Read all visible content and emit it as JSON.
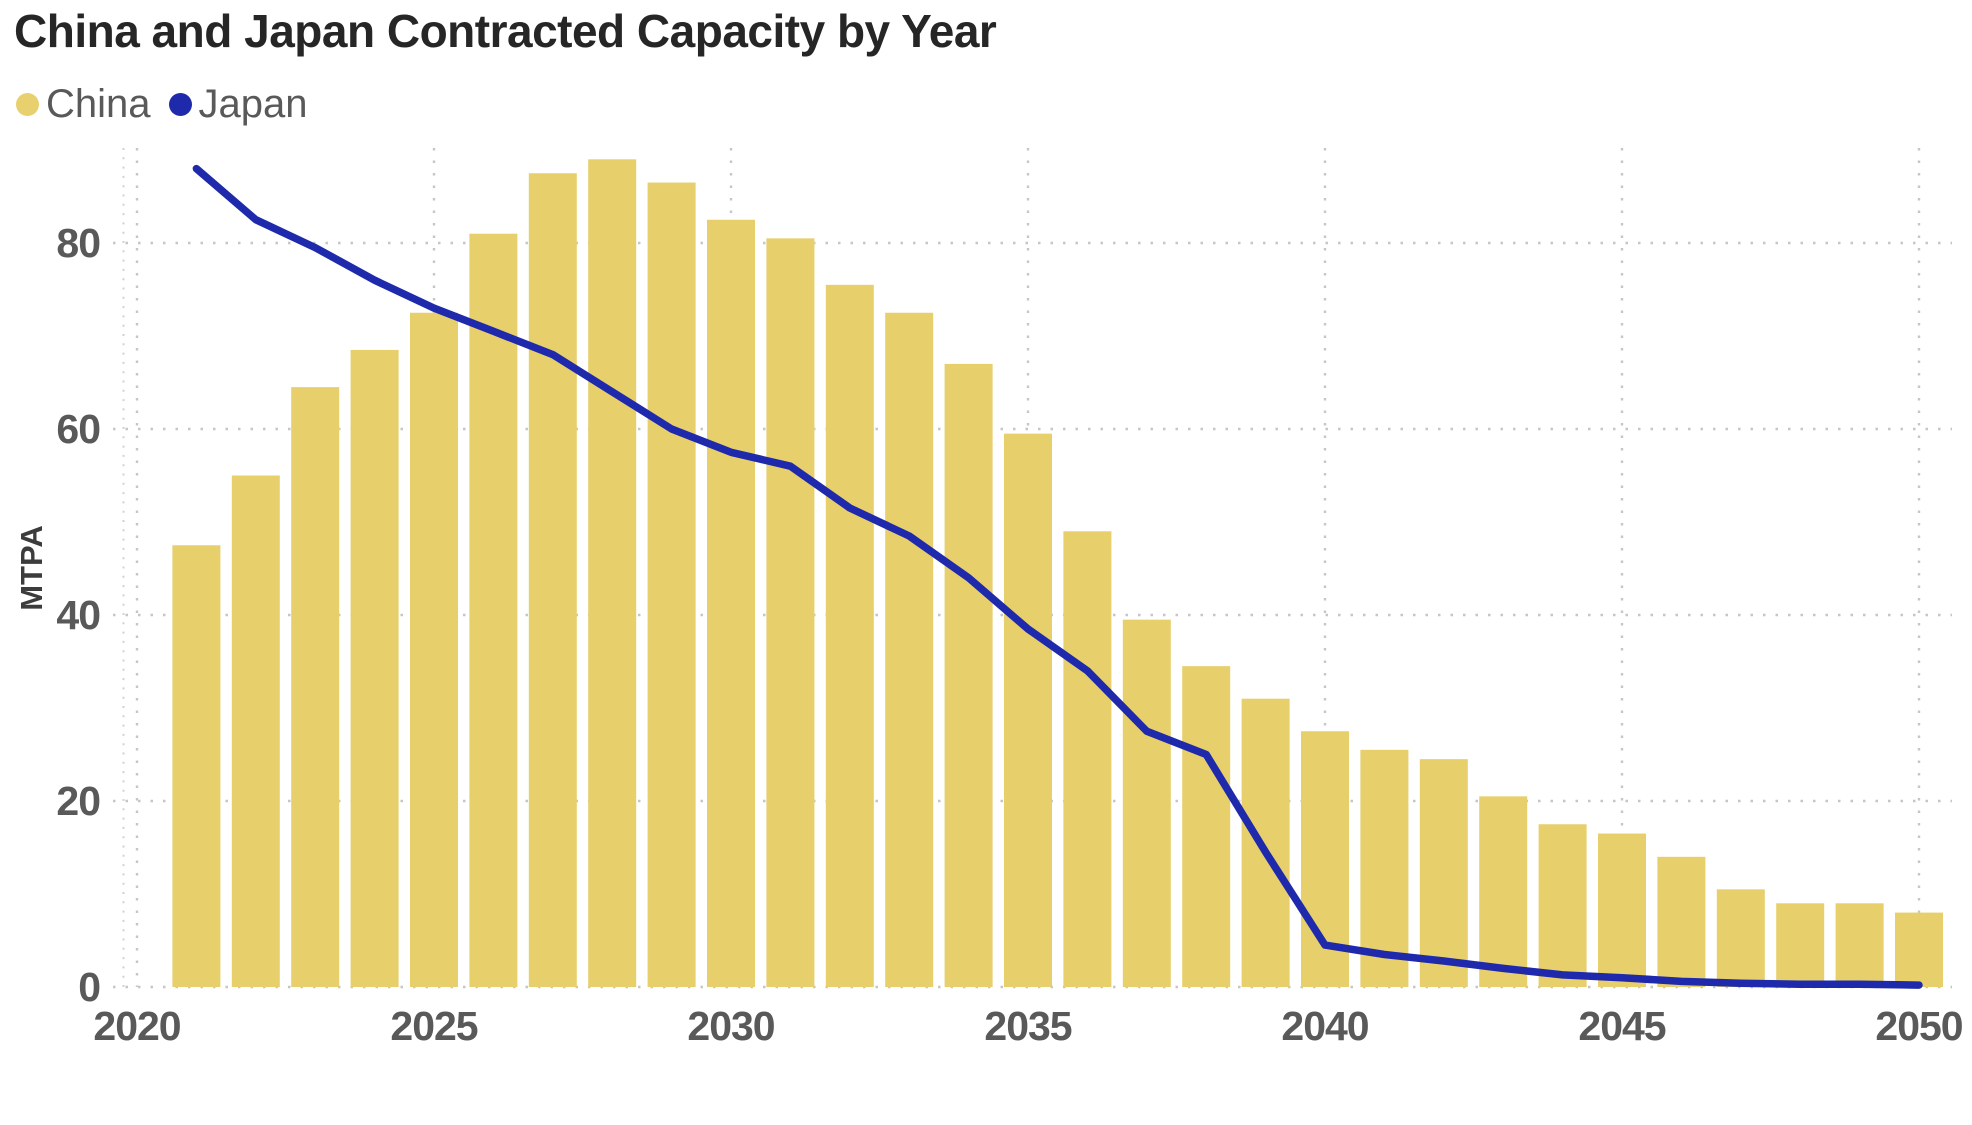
{
  "title": "China and Japan Contracted Capacity by Year",
  "legend": {
    "items": [
      {
        "label": "China",
        "color": "#e9d06e",
        "marker": "circle"
      },
      {
        "label": "Japan",
        "color": "#1e2aab",
        "marker": "circle"
      }
    ]
  },
  "colors": {
    "bar_fill": "#e7cf6c",
    "line_stroke": "#1e2aab",
    "gridline": "#c6c6c6",
    "minor_tick": "#d2d2d2",
    "tick_text": "#595959",
    "title_text": "#262626"
  },
  "chart_data": {
    "type": "bar",
    "title": "China and Japan Contracted Capacity by Year",
    "xlabel": "",
    "ylabel": "MTPA",
    "ylim": [
      0,
      90.5
    ],
    "grid": true,
    "legend_position": "top-left",
    "y_ticks": [
      0,
      20,
      40,
      60,
      80
    ],
    "x_ticks": [
      2020,
      2025,
      2030,
      2035,
      2040,
      2045,
      2050
    ],
    "categories": [
      2021,
      2022,
      2023,
      2024,
      2025,
      2026,
      2027,
      2028,
      2029,
      2030,
      2031,
      2032,
      2033,
      2034,
      2035,
      2036,
      2037,
      2038,
      2039,
      2040,
      2041,
      2042,
      2043,
      2044,
      2045,
      2046,
      2047,
      2048,
      2049,
      2050
    ],
    "series": [
      {
        "name": "China",
        "type": "bar",
        "color": "#e7cf6c",
        "values": [
          47.5,
          55,
          64.5,
          68.5,
          72.5,
          81,
          87.5,
          89,
          86.5,
          82.5,
          80.5,
          75.5,
          72.5,
          67,
          59.5,
          49,
          39.5,
          34.5,
          31,
          27.5,
          25.5,
          24.5,
          20.5,
          17.5,
          16.5,
          14,
          10.5,
          9,
          9,
          8
        ]
      },
      {
        "name": "Japan",
        "type": "line",
        "color": "#1e2aab",
        "values": [
          88,
          82.5,
          79.5,
          76,
          73,
          70.5,
          68,
          64,
          60,
          57.5,
          56,
          51.5,
          48.5,
          44,
          38.5,
          34,
          27.5,
          25,
          14.5,
          4.5,
          3.5,
          2.8,
          2,
          1.3,
          1,
          0.6,
          0.4,
          0.3,
          0.3,
          0.2
        ]
      }
    ]
  }
}
